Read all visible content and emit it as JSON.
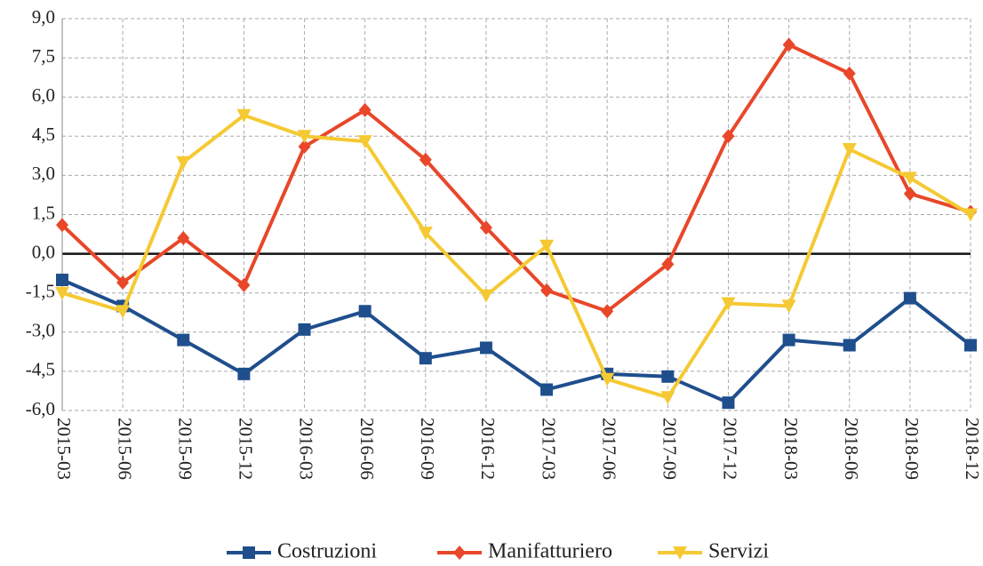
{
  "chart_data": {
    "type": "line",
    "categories": [
      "2015-03",
      "2015-06",
      "2015-09",
      "2015-12",
      "2016-03",
      "2016-06",
      "2016-09",
      "2016-12",
      "2017-03",
      "2017-06",
      "2017-09",
      "2017-12",
      "2018-03",
      "2018-06",
      "2018-09",
      "2018-12"
    ],
    "series": [
      {
        "name": "Costruzioni",
        "color": "#1f4e8c",
        "marker": "square",
        "values": [
          -1.0,
          -2.0,
          -3.3,
          -4.6,
          -2.9,
          -2.2,
          -4.0,
          -3.6,
          -5.2,
          -4.6,
          -4.7,
          -5.7,
          -3.3,
          -3.5,
          -1.7,
          -3.5
        ]
      },
      {
        "name": "Manifatturiero",
        "color": "#e8472a",
        "marker": "diamond",
        "values": [
          1.1,
          -1.1,
          0.6,
          -1.2,
          4.1,
          5.5,
          3.6,
          1.0,
          -1.4,
          -2.2,
          -0.4,
          4.5,
          8.0,
          6.9,
          2.3,
          1.6
        ]
      },
      {
        "name": "Servizi",
        "color": "#f5c933",
        "marker": "triangle-down",
        "values": [
          -1.5,
          -2.2,
          3.5,
          5.3,
          4.5,
          4.3,
          0.8,
          -1.6,
          0.3,
          -4.8,
          -5.5,
          -1.9,
          -2.0,
          4.0,
          2.9,
          1.5
        ]
      }
    ],
    "ylim": [
      -6,
      9
    ],
    "yticks": [
      {
        "value": -6,
        "label": "-6,0"
      },
      {
        "value": -4.5,
        "label": "-4,5"
      },
      {
        "value": -3,
        "label": "-3,0"
      },
      {
        "value": -1.5,
        "label": "-1,5"
      },
      {
        "value": 0,
        "label": "0,0"
      },
      {
        "value": 1.5,
        "label": "1,5"
      },
      {
        "value": 3,
        "label": "3,0"
      },
      {
        "value": 4.5,
        "label": "4,5"
      },
      {
        "value": 6,
        "label": "6,0"
      },
      {
        "value": 7.5,
        "label": "7,5"
      },
      {
        "value": 9,
        "label": "9,0"
      }
    ],
    "grid": true,
    "legend": "bottom"
  }
}
